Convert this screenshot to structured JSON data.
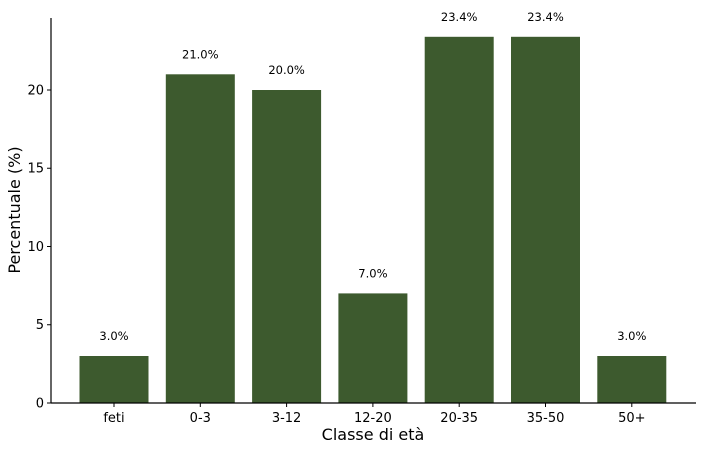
{
  "chart_data": {
    "type": "bar",
    "categories": [
      "feti",
      "0-3",
      "3-12",
      "12-20",
      "20-35",
      "35-50",
      "50+"
    ],
    "values": [
      3.0,
      21.0,
      20.0,
      7.0,
      23.4,
      23.4,
      3.0
    ],
    "data_labels": [
      "3.0%",
      "21.0%",
      "20.0%",
      "7.0%",
      "23.4%",
      "23.4%",
      "3.0%"
    ],
    "title": "",
    "xlabel": "Classe di età",
    "ylabel": "Percentuale (%)",
    "ylim": [
      0,
      24.6
    ],
    "yticks": [
      0,
      5,
      10,
      15,
      20
    ],
    "grid": false,
    "bar_color": "#3d5a2e"
  }
}
